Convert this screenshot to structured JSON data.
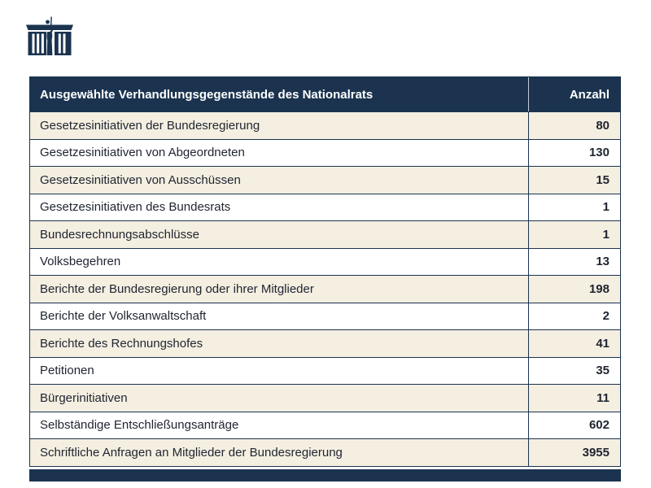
{
  "logo": {
    "name": "Österreichisches Parlament",
    "color": "#1b334f"
  },
  "colors": {
    "navy": "#1b334f",
    "row_beige": "#f4efe1",
    "row_white": "#ffffff",
    "header_text": "#ffffff",
    "body_text": "#1f2430"
  },
  "chart_data": {
    "type": "table",
    "title": "Ausgewählte Verhandlungsgegenstände des Nationalrats",
    "columns": [
      "Ausgewählte Verhandlungsgegenstände des Nationalrats",
      "Anzahl"
    ],
    "rows": [
      [
        "Gesetzesinitiativen der Bundesregierung",
        80
      ],
      [
        "Gesetzesinitiativen von Abgeordneten",
        130
      ],
      [
        "Gesetzesinitiativen von Ausschüssen",
        15
      ],
      [
        "Gesetzesinitiativen des Bundesrats",
        1
      ],
      [
        "Bundesrechnungsabschlüsse",
        1
      ],
      [
        "Volksbegehren",
        13
      ],
      [
        "Berichte der Bundesregierung oder ihrer Mitglieder",
        198
      ],
      [
        "Berichte der Volksanwaltschaft",
        2
      ],
      [
        "Berichte des Rechnungshofes",
        41
      ],
      [
        "Petitionen",
        35
      ],
      [
        "Bürgerinitiativen",
        11
      ],
      [
        "Selbständige Entschließungsanträge",
        602
      ],
      [
        "Schriftliche Anfragen an Mitglieder der Bundesregierung",
        3955
      ]
    ],
    "layout": {
      "alternating_rows": true,
      "value_column_align": "right"
    }
  }
}
